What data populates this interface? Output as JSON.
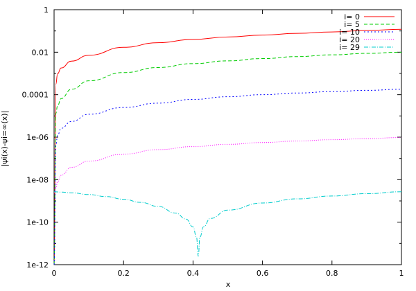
{
  "chart_data": {
    "type": "line",
    "title": "",
    "xlabel": "x",
    "ylabel": "|ψi(x)-ψi=∞(x)|",
    "xlim": [
      0,
      1
    ],
    "ylim": [
      1e-12,
      1
    ],
    "y_scale": "log",
    "grid": false,
    "legend_position": "top-right",
    "x_ticks": [
      "0",
      "0.2",
      "0.4",
      "0.6",
      "0.8",
      "1"
    ],
    "x_tick_values": [
      0,
      0.2,
      0.4,
      0.6,
      0.8,
      1
    ],
    "y_ticks": [
      "1e-12",
      "1e-10",
      "1e-08",
      "1e-06",
      "0.0001",
      "0.01",
      "1"
    ],
    "y_tick_values": [
      1e-12,
      1e-10,
      1e-08,
      1e-06,
      0.0001,
      0.01,
      1
    ],
    "series": [
      {
        "name": "i= 0",
        "color": "#ff0000",
        "dash": "",
        "x": [
          0,
          0.005,
          0.01,
          0.02,
          0.05,
          0.1,
          0.2,
          0.3,
          0.4,
          0.5,
          0.6,
          0.7,
          0.8,
          0.9,
          1.0
        ],
        "y": [
          0.0,
          0.00031,
          0.00095,
          0.0018,
          0.0038,
          0.0072,
          0.017,
          0.028,
          0.04,
          0.052,
          0.064,
          0.077,
          0.09,
          0.105,
          0.12
        ]
      },
      {
        "name": "i= 5",
        "color": "#00cc00",
        "dash": "5,3",
        "x": [
          0,
          0.005,
          0.01,
          0.02,
          0.05,
          0.1,
          0.2,
          0.3,
          0.4,
          0.5,
          0.6,
          0.7,
          0.8,
          0.9,
          1.0
        ],
        "y": [
          0.0,
          1.3e-05,
          3e-05,
          6.5e-05,
          0.00018,
          0.00045,
          0.0011,
          0.0019,
          0.0029,
          0.0039,
          0.005,
          0.0062,
          0.0075,
          0.0088,
          0.01
        ]
      },
      {
        "name": "i= 10",
        "color": "#0000ff",
        "dash": "2,3",
        "x": [
          0,
          0.005,
          0.01,
          0.02,
          0.05,
          0.1,
          0.2,
          0.3,
          0.4,
          0.5,
          0.6,
          0.7,
          0.8,
          0.9,
          1.0
        ],
        "y": [
          0.0,
          4e-07,
          1.2e-06,
          2.6e-06,
          5.5e-06,
          1.2e-05,
          2.5e-05,
          4e-05,
          6e-05,
          8e-05,
          0.0001,
          0.00012,
          0.00014,
          0.00016,
          0.00018
        ]
      },
      {
        "name": "i= 20",
        "color": "#ff00ff",
        "dash": "1,2",
        "x": [
          0,
          0.005,
          0.01,
          0.02,
          0.05,
          0.1,
          0.2,
          0.3,
          0.4,
          0.5,
          0.6,
          0.7,
          0.8,
          0.9,
          1.0
        ],
        "y": [
          2.5e-09,
          4e-09,
          8e-09,
          1.6e-08,
          3.8e-08,
          7.5e-08,
          1.6e-07,
          2.6e-07,
          3.6e-07,
          4.6e-07,
          5.6e-07,
          6.6e-07,
          7.6e-07,
          8.6e-07,
          9.6e-07
        ]
      },
      {
        "name": "i= 29",
        "color": "#00cccc",
        "dash": "6,2,1,2",
        "x": [
          0,
          0.02,
          0.05,
          0.1,
          0.15,
          0.2,
          0.25,
          0.3,
          0.35,
          0.38,
          0.4,
          0.41,
          0.415,
          0.42,
          0.43,
          0.45,
          0.5,
          0.6,
          0.7,
          0.8,
          0.9,
          1.0
        ],
        "y": [
          2.7e-09,
          2.6e-09,
          2.4e-09,
          2e-09,
          1.6e-09,
          1.2e-09,
          8.5e-10,
          5.5e-10,
          2.7e-10,
          1.4e-10,
          6e-11,
          2e-11,
          2.5e-12,
          2e-11,
          6e-11,
          1.5e-10,
          3.7e-10,
          8e-10,
          1.25e-09,
          1.7e-09,
          2.2e-09,
          2.7e-09
        ]
      }
    ]
  }
}
